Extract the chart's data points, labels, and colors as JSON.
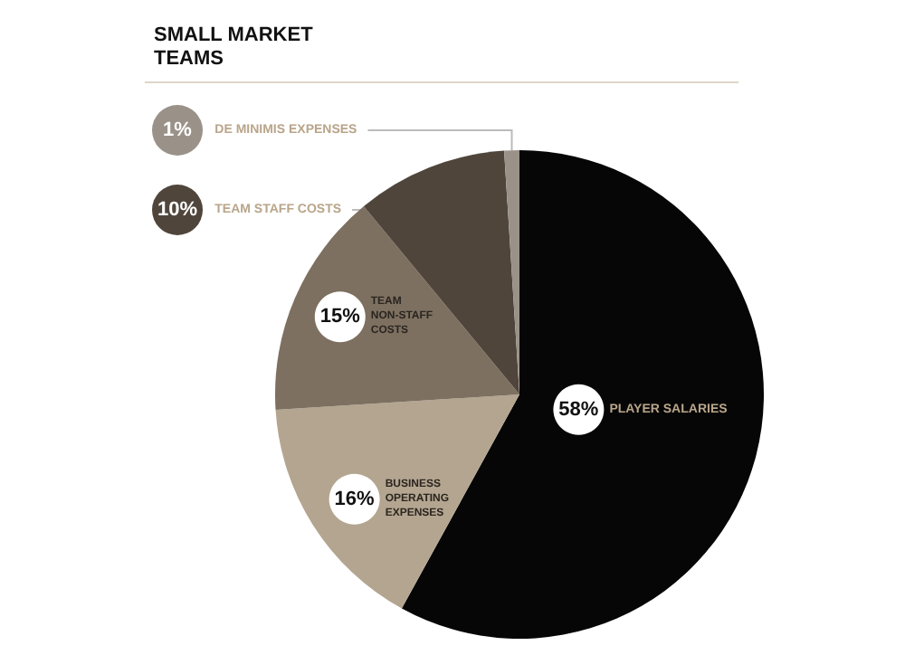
{
  "chart_data": {
    "type": "pie",
    "title": "SMALL MARKET TEAMS",
    "categories": [
      "PLAYER SALARIES",
      "BUSINESS OPERATING EXPENSES",
      "TEAM NON-STAFF COSTS",
      "TEAM STAFF COSTS",
      "DE MINIMIS EXPENSES"
    ],
    "values": [
      58,
      16,
      15,
      10,
      1
    ],
    "value_labels": [
      "58%",
      "16%",
      "15%",
      "10%",
      "1%"
    ],
    "colors": [
      "#060606",
      "#b3a58f",
      "#7d7060",
      "#4f453b",
      "#9a9188"
    ],
    "legend": false
  }
}
